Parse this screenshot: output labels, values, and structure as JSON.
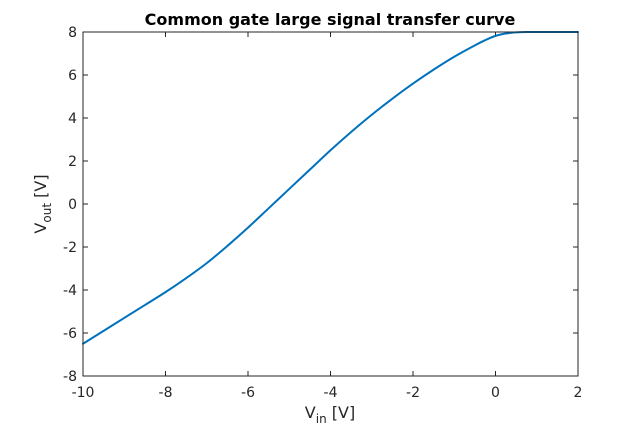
{
  "chart_data": {
    "type": "line",
    "title": "Common gate large signal transfer curve",
    "xlabel": {
      "main": "V",
      "sub": "in",
      "unit": " [V]"
    },
    "ylabel": {
      "main": "V",
      "sub": "out",
      "unit": " [V]"
    },
    "xlim": [
      -10,
      2
    ],
    "ylim": [
      -8,
      8
    ],
    "xticks": [
      -10,
      -8,
      -6,
      -4,
      -2,
      0,
      2
    ],
    "yticks": [
      -8,
      -6,
      -4,
      -2,
      0,
      2,
      4,
      6,
      8
    ],
    "xtick_labels": [
      "-10",
      "-8",
      "-6",
      "-4",
      "-2",
      "0",
      "2"
    ],
    "ytick_labels": [
      "-8",
      "-6",
      "-4",
      "-2",
      "0",
      "2",
      "4",
      "6",
      "8"
    ],
    "grid": false,
    "line_color": "#0072BD",
    "series": [
      {
        "x": [
          -10,
          -9.5,
          -9,
          -8.5,
          -8,
          -7.5,
          -7,
          -6.5,
          -6,
          -5.5,
          -5,
          -4.5,
          -4,
          -3.5,
          -3,
          -2.5,
          -2,
          -1.5,
          -1,
          -0.5,
          -0.25,
          0,
          0.25,
          0.5,
          0.75,
          1,
          1.5,
          2
        ],
        "y": [
          -6.5,
          -5.9,
          -5.3,
          -4.7,
          -4.1,
          -3.45,
          -2.75,
          -1.95,
          -1.1,
          -0.2,
          0.7,
          1.6,
          2.5,
          3.35,
          4.15,
          4.9,
          5.6,
          6.25,
          6.85,
          7.38,
          7.62,
          7.82,
          7.93,
          7.98,
          8.0,
          8.0,
          8.0,
          8.0
        ]
      }
    ]
  }
}
